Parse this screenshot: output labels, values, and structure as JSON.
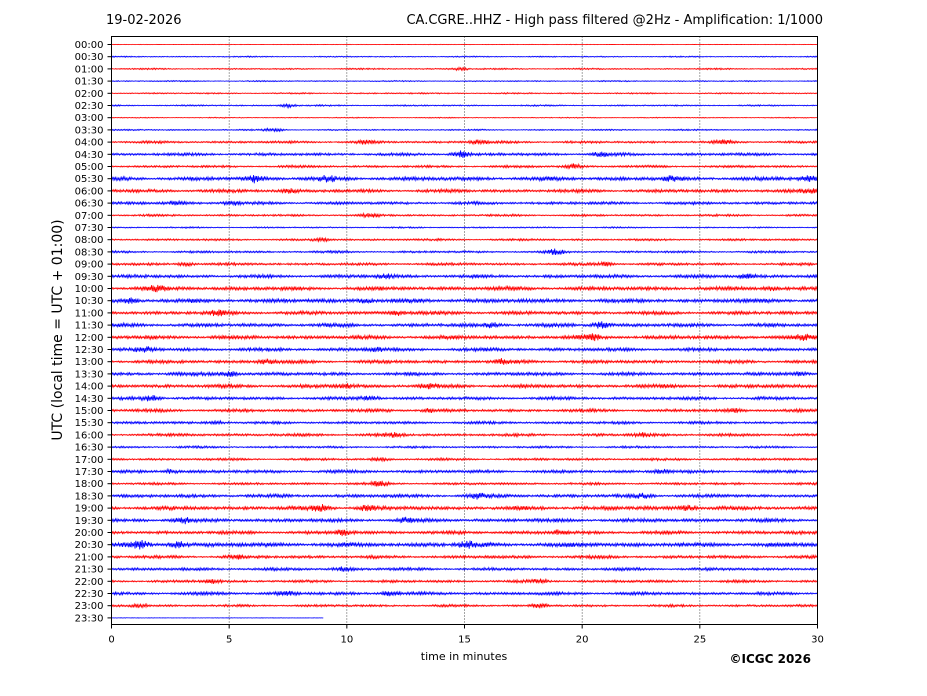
{
  "header": {
    "date": "19-02-2026",
    "station_title": "CA.CGRE..HHZ - High pass filtered @2Hz - Amplification: 1/1000"
  },
  "footer": {
    "copyright": "©ICGC 2026"
  },
  "chart_data": {
    "type": "line",
    "title": "CA.CGRE..HHZ - High pass filtered @2Hz - Amplification: 1/1000",
    "xlabel": "time in minutes",
    "ylabel": "UTC (local time = UTC + 01:00)",
    "xlim": [
      0,
      30
    ],
    "xticks": [
      "0",
      "5",
      "10",
      "15",
      "20",
      "25",
      "30"
    ],
    "xtick_values": [
      0,
      5,
      10,
      15,
      20,
      25,
      30
    ],
    "grid": "vertical dotted at each x tick",
    "trace_colors": [
      "#ff0000",
      "#0000ff"
    ],
    "rows": [
      "00:00",
      "00:30",
      "01:00",
      "01:30",
      "02:00",
      "02:30",
      "03:00",
      "03:30",
      "04:00",
      "04:30",
      "05:00",
      "05:30",
      "06:00",
      "06:30",
      "07:00",
      "07:30",
      "08:00",
      "08:30",
      "09:00",
      "09:30",
      "10:00",
      "10:30",
      "11:00",
      "11:30",
      "12:00",
      "12:30",
      "13:00",
      "13:30",
      "14:00",
      "14:30",
      "15:00",
      "15:30",
      "16:00",
      "16:30",
      "17:00",
      "17:30",
      "18:00",
      "18:30",
      "19:00",
      "19:30",
      "20:00",
      "20:30",
      "21:00",
      "21:30",
      "22:00",
      "22:30",
      "23:00",
      "23:30"
    ],
    "row_noise_level": [
      0.2,
      0.5,
      0.6,
      0.5,
      0.6,
      0.6,
      0.4,
      0.6,
      1.0,
      1.2,
      1.0,
      1.6,
      1.4,
      1.2,
      0.9,
      0.6,
      0.9,
      0.9,
      1.1,
      1.4,
      1.6,
      1.7,
      1.5,
      1.5,
      1.6,
      1.4,
      1.4,
      1.4,
      1.5,
      1.3,
      1.3,
      1.1,
      1.2,
      0.9,
      1.0,
      1.3,
      1.0,
      1.4,
      1.6,
      1.5,
      1.4,
      1.8,
      1.3,
      1.2,
      1.1,
      1.3,
      1.0,
      0.2
    ],
    "row_events": [
      [],
      [],
      [
        [
          14.8,
          1.2
        ]
      ],
      [],
      [],
      [
        [
          7.5,
          1.5
        ]
      ],
      [],
      [
        [
          6.9,
          1.6
        ]
      ],
      [
        [
          10.8,
          1.6
        ],
        [
          15.6,
          2.0
        ],
        [
          26,
          1.4
        ]
      ],
      [
        [
          14.8,
          3.0
        ],
        [
          20.8,
          1.8
        ]
      ],
      [
        [
          19.6,
          2.2
        ]
      ],
      [
        [
          6.1,
          3.2
        ],
        [
          9.2,
          2.2
        ],
        [
          23.8,
          2.4
        ],
        [
          29.6,
          2.6
        ]
      ],
      [
        [
          7.6,
          1.8
        ],
        [
          29.7,
          1.8
        ]
      ],
      [
        [
          2.7,
          1.6
        ],
        [
          5.1,
          1.8
        ]
      ],
      [
        [
          11,
          1.5
        ]
      ],
      [],
      [
        [
          9,
          1.4
        ]
      ],
      [
        [
          18.9,
          2.2
        ]
      ],
      [
        [
          3.2,
          1.6
        ],
        [
          21,
          1.6
        ]
      ],
      [
        [
          11.6,
          2.0
        ],
        [
          27,
          1.8
        ]
      ],
      [
        [
          1.9,
          2.2
        ],
        [
          28,
          1.8
        ]
      ],
      [
        [
          0.8,
          2.0
        ],
        [
          10.8,
          1.8
        ]
      ],
      [
        [
          4.5,
          2.0
        ],
        [
          12.2,
          1.8
        ]
      ],
      [
        [
          16.2,
          2.0
        ],
        [
          20.8,
          2.8
        ]
      ],
      [
        [
          20.4,
          2.2
        ],
        [
          29.4,
          1.8
        ]
      ],
      [
        [
          1.4,
          2.4
        ],
        [
          11.2,
          1.8
        ]
      ],
      [
        [
          6.6,
          2.0
        ],
        [
          16.6,
          2.0
        ]
      ],
      [
        [
          5,
          2.6
        ],
        [
          29.2,
          2.0
        ]
      ],
      [
        [
          10,
          1.8
        ],
        [
          13.4,
          1.6
        ]
      ],
      [
        [
          1.7,
          2.4
        ],
        [
          11,
          1.8
        ]
      ],
      [
        [
          13.5,
          1.6
        ],
        [
          26.5,
          1.6
        ]
      ],
      [
        [
          4.5,
          1.4
        ]
      ],
      [
        [
          12,
          1.5
        ],
        [
          22.6,
          1.6
        ]
      ],
      [],
      [
        [
          11.4,
          1.4
        ]
      ],
      [
        [
          2.5,
          1.6
        ],
        [
          23.4,
          1.6
        ]
      ],
      [
        [
          11.4,
          2.2
        ]
      ],
      [
        [
          15.5,
          2.2
        ],
        [
          22.6,
          1.8
        ]
      ],
      [
        [
          8.9,
          2.6
        ],
        [
          10.9,
          2.8
        ],
        [
          24.5,
          2.4
        ]
      ],
      [
        [
          3.0,
          2.8
        ],
        [
          12.5,
          1.8
        ]
      ],
      [
        [
          9.8,
          2.4
        ],
        [
          19,
          2.0
        ]
      ],
      [
        [
          1.2,
          2.8
        ],
        [
          2.8,
          3.0
        ],
        [
          15.1,
          2.8
        ]
      ],
      [
        [
          5.2,
          1.6
        ]
      ],
      [
        [
          9.8,
          1.6
        ]
      ],
      [
        [
          4.3,
          1.6
        ],
        [
          18.2,
          1.5
        ]
      ],
      [
        [
          7.4,
          2.2
        ],
        [
          11.8,
          2.0
        ]
      ],
      [
        [
          1.2,
          1.6
        ],
        [
          18.2,
          1.6
        ]
      ],
      []
    ]
  }
}
